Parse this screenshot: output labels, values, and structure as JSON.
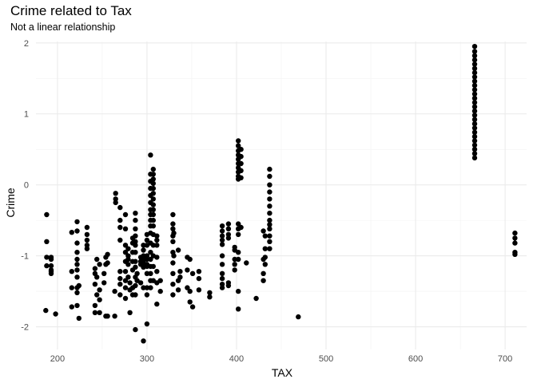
{
  "chart_data": {
    "type": "scatter",
    "title": "Crime related to Tax",
    "subtitle": "Not a linear relationship",
    "xlabel": "TAX",
    "ylabel": "Crime",
    "xlim": [
      176,
      724
    ],
    "ylim": [
      -2.32,
      2.02
    ],
    "xticks": [
      200,
      300,
      400,
      500,
      600,
      700
    ],
    "yticks": [
      -2,
      -1,
      0,
      1,
      2
    ],
    "grid": true,
    "point_color": "#000000",
    "points": [
      [
        187,
        -1.77
      ],
      [
        188,
        -0.8
      ],
      [
        188,
        -1.02
      ],
      [
        188,
        -1.14
      ],
      [
        188,
        -0.42
      ],
      [
        193,
        -1.02
      ],
      [
        193,
        -1.05
      ],
      [
        193,
        -1.14
      ],
      [
        193,
        -1.2
      ],
      [
        193,
        -1.22
      ],
      [
        193,
        -1.25
      ],
      [
        198,
        -1.82
      ],
      [
        216,
        -0.67
      ],
      [
        216,
        -1.22
      ],
      [
        216,
        -1.45
      ],
      [
        216,
        -1.72
      ],
      [
        222,
        -0.52
      ],
      [
        222,
        -0.65
      ],
      [
        222,
        -0.82
      ],
      [
        222,
        -0.95
      ],
      [
        222,
        -1.05
      ],
      [
        222,
        -1.12
      ],
      [
        222,
        -1.2
      ],
      [
        222,
        -1.3
      ],
      [
        222,
        -1.45
      ],
      [
        222,
        -1.52
      ],
      [
        222,
        -1.7
      ],
      [
        224,
        -1.88
      ],
      [
        224,
        -1.42
      ],
      [
        233,
        -0.6
      ],
      [
        233,
        -0.7
      ],
      [
        233,
        -0.78
      ],
      [
        233,
        -0.85
      ],
      [
        233,
        -0.9
      ],
      [
        242,
        -1.18
      ],
      [
        242,
        -1.25
      ],
      [
        242,
        -1.4
      ],
      [
        242,
        -1.7
      ],
      [
        242,
        -1.8
      ],
      [
        244,
        -1.05
      ],
      [
        244,
        -1.3
      ],
      [
        244,
        -1.55
      ],
      [
        247,
        -1.12
      ],
      [
        247,
        -1.48
      ],
      [
        247,
        -1.62
      ],
      [
        247,
        -1.8
      ],
      [
        252,
        -1.25
      ],
      [
        252,
        -1.38
      ],
      [
        254,
        -1.02
      ],
      [
        254,
        -1.12
      ],
      [
        254,
        -1.85
      ],
      [
        256,
        -0.98
      ],
      [
        256,
        -1.1
      ],
      [
        256,
        -1.85
      ],
      [
        264,
        -1.5
      ],
      [
        264,
        -1.85
      ],
      [
        265,
        -0.12
      ],
      [
        265,
        -0.2
      ],
      [
        265,
        -0.25
      ],
      [
        270,
        -0.32
      ],
      [
        270,
        -0.5
      ],
      [
        270,
        -0.6
      ],
      [
        270,
        -0.78
      ],
      [
        270,
        -1.22
      ],
      [
        270,
        -1.32
      ],
      [
        270,
        -1.4
      ],
      [
        270,
        -1.55
      ],
      [
        276,
        -0.42
      ],
      [
        276,
        -0.62
      ],
      [
        276,
        -0.85
      ],
      [
        276,
        -0.95
      ],
      [
        276,
        -1.08
      ],
      [
        276,
        -1.22
      ],
      [
        276,
        -1.35
      ],
      [
        276,
        -1.45
      ],
      [
        276,
        -1.6
      ],
      [
        279,
        -0.9
      ],
      [
        279,
        -1.0
      ],
      [
        279,
        -1.05
      ],
      [
        279,
        -1.12
      ],
      [
        279,
        -1.3
      ],
      [
        281,
        -1.38
      ],
      [
        281,
        -1.48
      ],
      [
        281,
        -1.8
      ],
      [
        284,
        -0.75
      ],
      [
        284,
        -0.82
      ],
      [
        284,
        -0.95
      ],
      [
        284,
        -1.08
      ],
      [
        284,
        -1.2
      ],
      [
        284,
        -1.45
      ],
      [
        284,
        -1.55
      ],
      [
        287,
        -0.4
      ],
      [
        287,
        -0.5
      ],
      [
        287,
        -0.62
      ],
      [
        287,
        -0.72
      ],
      [
        287,
        -0.8
      ],
      [
        287,
        -0.85
      ],
      [
        287,
        -0.95
      ],
      [
        287,
        -1.08
      ],
      [
        287,
        -1.16
      ],
      [
        287,
        -1.3
      ],
      [
        287,
        -1.42
      ],
      [
        287,
        -1.55
      ],
      [
        287,
        -2.04
      ],
      [
        289,
        -1.25
      ],
      [
        289,
        -1.35
      ],
      [
        293,
        -1.02
      ],
      [
        293,
        -1.08
      ],
      [
        293,
        -1.12
      ],
      [
        293,
        -1.38
      ],
      [
        296,
        -0.85
      ],
      [
        296,
        -0.92
      ],
      [
        296,
        -1.0
      ],
      [
        296,
        -1.02
      ],
      [
        296,
        -1.06
      ],
      [
        296,
        -1.1
      ],
      [
        296,
        -1.16
      ],
      [
        296,
        -1.45
      ],
      [
        296,
        -2.2
      ],
      [
        300,
        -0.7
      ],
      [
        300,
        -0.78
      ],
      [
        300,
        -0.85
      ],
      [
        300,
        -1.0
      ],
      [
        300,
        -1.05
      ],
      [
        300,
        -1.12
      ],
      [
        300,
        -1.15
      ],
      [
        300,
        -1.25
      ],
      [
        300,
        -1.45
      ],
      [
        300,
        -1.55
      ],
      [
        300,
        -1.96
      ],
      [
        304,
        0.42
      ],
      [
        304,
        0.15
      ],
      [
        304,
        0.05
      ],
      [
        304,
        -0.05
      ],
      [
        304,
        -0.15
      ],
      [
        304,
        -0.25
      ],
      [
        304,
        -0.35
      ],
      [
        304,
        -0.42
      ],
      [
        304,
        -0.5
      ],
      [
        304,
        -0.58
      ],
      [
        304,
        -0.68
      ],
      [
        304,
        -0.82
      ],
      [
        304,
        -0.95
      ],
      [
        304,
        -1.05
      ],
      [
        304,
        -1.15
      ],
      [
        304,
        -1.25
      ],
      [
        304,
        -1.35
      ],
      [
        304,
        -1.45
      ],
      [
        307,
        0.22
      ],
      [
        307,
        0.15
      ],
      [
        307,
        0.08
      ],
      [
        307,
        0.02
      ],
      [
        307,
        -0.05
      ],
      [
        307,
        -0.12
      ],
      [
        307,
        -0.2
      ],
      [
        307,
        -0.28
      ],
      [
        307,
        -0.35
      ],
      [
        307,
        -0.42
      ],
      [
        307,
        -0.5
      ],
      [
        307,
        -0.58
      ],
      [
        307,
        -0.7
      ],
      [
        307,
        -0.85
      ],
      [
        307,
        -1.0
      ],
      [
        307,
        -1.15
      ],
      [
        307,
        -1.35
      ],
      [
        311,
        -0.72
      ],
      [
        311,
        -0.78
      ],
      [
        311,
        -0.85
      ],
      [
        311,
        -1.02
      ],
      [
        311,
        -1.22
      ],
      [
        311,
        -1.38
      ],
      [
        311,
        -1.68
      ],
      [
        315,
        -1.35
      ],
      [
        315,
        -1.5
      ],
      [
        329,
        -0.42
      ],
      [
        329,
        -0.55
      ],
      [
        329,
        -0.62
      ],
      [
        329,
        -0.72
      ],
      [
        329,
        -0.8
      ],
      [
        329,
        -0.95
      ],
      [
        329,
        -1.1
      ],
      [
        329,
        -1.25
      ],
      [
        329,
        -1.4
      ],
      [
        329,
        -1.55
      ],
      [
        330,
        -0.68
      ],
      [
        330,
        -1.0
      ],
      [
        335,
        -0.92
      ],
      [
        335,
        -1.35
      ],
      [
        335,
        -1.48
      ],
      [
        337,
        -1.22
      ],
      [
        337,
        -1.3
      ],
      [
        345,
        -1.02
      ],
      [
        345,
        -1.2
      ],
      [
        345,
        -1.45
      ],
      [
        348,
        -1.05
      ],
      [
        348,
        -1.5
      ],
      [
        348,
        -1.65
      ],
      [
        351,
        -1.25
      ],
      [
        351,
        -1.72
      ],
      [
        358,
        -1.22
      ],
      [
        358,
        -1.32
      ],
      [
        358,
        -1.48
      ],
      [
        370,
        -1.52
      ],
      [
        370,
        -1.58
      ],
      [
        384,
        -0.58
      ],
      [
        384,
        -0.65
      ],
      [
        384,
        -0.72
      ],
      [
        384,
        -0.78
      ],
      [
        384,
        -0.84
      ],
      [
        384,
        -1.0
      ],
      [
        384,
        -1.12
      ],
      [
        384,
        -1.25
      ],
      [
        384,
        -1.32
      ],
      [
        384,
        -1.4
      ],
      [
        384,
        -1.45
      ],
      [
        391,
        -0.55
      ],
      [
        391,
        -0.62
      ],
      [
        391,
        -0.7
      ],
      [
        391,
        -0.75
      ],
      [
        391,
        -1.38
      ],
      [
        391,
        -1.42
      ],
      [
        398,
        -0.88
      ],
      [
        398,
        -0.92
      ],
      [
        398,
        -1.05
      ],
      [
        398,
        -1.12
      ],
      [
        398,
        -1.2
      ],
      [
        402,
        0.62
      ],
      [
        402,
        0.55
      ],
      [
        402,
        0.48
      ],
      [
        402,
        0.42
      ],
      [
        402,
        0.36
      ],
      [
        402,
        0.3
      ],
      [
        402,
        0.24
      ],
      [
        402,
        0.18
      ],
      [
        402,
        0.12
      ],
      [
        402,
        0.08
      ],
      [
        402,
        -0.55
      ],
      [
        402,
        -0.62
      ],
      [
        402,
        -0.7
      ],
      [
        402,
        -0.95
      ],
      [
        402,
        -1.05
      ],
      [
        402,
        -1.5
      ],
      [
        402,
        -1.75
      ],
      [
        405,
        0.5
      ],
      [
        405,
        0.4
      ],
      [
        405,
        0.3
      ],
      [
        405,
        0.2
      ],
      [
        405,
        0.1
      ],
      [
        405,
        -0.6
      ],
      [
        411,
        -1.1
      ],
      [
        422,
        -1.6
      ],
      [
        430,
        -0.65
      ],
      [
        430,
        -1.05
      ],
      [
        430,
        -1.25
      ],
      [
        430,
        -1.35
      ],
      [
        432,
        -0.72
      ],
      [
        432,
        -0.9
      ],
      [
        432,
        -1.02
      ],
      [
        432,
        -1.12
      ],
      [
        437,
        0.22
      ],
      [
        437,
        0.12
      ],
      [
        437,
        0.0
      ],
      [
        437,
        -0.1
      ],
      [
        437,
        -0.2
      ],
      [
        437,
        -0.3
      ],
      [
        437,
        -0.4
      ],
      [
        437,
        -0.5
      ],
      [
        437,
        -0.56
      ],
      [
        437,
        -0.62
      ],
      [
        437,
        -0.72
      ],
      [
        437,
        -0.8
      ],
      [
        437,
        -0.9
      ],
      [
        469,
        -1.86
      ],
      [
        666,
        1.95
      ],
      [
        666,
        1.88
      ],
      [
        666,
        1.82
      ],
      [
        666,
        1.76
      ],
      [
        666,
        1.7
      ],
      [
        666,
        1.64
      ],
      [
        666,
        1.58
      ],
      [
        666,
        1.52
      ],
      [
        666,
        1.46
      ],
      [
        666,
        1.4
      ],
      [
        666,
        1.34
      ],
      [
        666,
        1.28
      ],
      [
        666,
        1.22
      ],
      [
        666,
        1.16
      ],
      [
        666,
        1.1
      ],
      [
        666,
        1.04
      ],
      [
        666,
        0.98
      ],
      [
        666,
        0.92
      ],
      [
        666,
        0.86
      ],
      [
        666,
        0.8
      ],
      [
        666,
        0.74
      ],
      [
        666,
        0.68
      ],
      [
        666,
        0.62
      ],
      [
        666,
        0.56
      ],
      [
        666,
        0.5
      ],
      [
        666,
        0.44
      ],
      [
        666,
        0.38
      ],
      [
        711,
        -0.68
      ],
      [
        711,
        -0.75
      ],
      [
        711,
        -0.82
      ],
      [
        711,
        -0.95
      ],
      [
        711,
        -0.98
      ]
    ]
  }
}
